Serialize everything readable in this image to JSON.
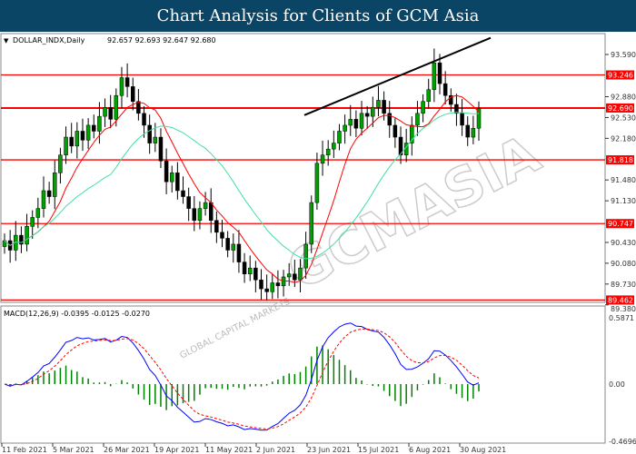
{
  "header": {
    "title": "Chart Analysis for Clients of GCM Asia"
  },
  "watermark": {
    "text": "GCMASIA",
    "subtext": "GLOBAL CAPITAL MARKETS"
  },
  "colors": {
    "header": "#0b4566",
    "level": "#ff0000",
    "ma_fast": "#ff0000",
    "ma_slow": "#40e0a0",
    "macd": "#0000ff",
    "signal": "#ff0000",
    "histogram": "#008000",
    "bull": "#00a000",
    "bear": "#000000"
  },
  "chart_data": [
    {
      "type": "candlestick",
      "symbol_label": "DOLLAR_INDX,Daily",
      "ohlc_label": "92.657 92.693 92.647 92.680",
      "y_ticks": [
        "93.590",
        "92.880",
        "92.530",
        "92.180",
        "91.480",
        "91.130",
        "90.430",
        "90.080",
        "89.730",
        "89.380"
      ],
      "ylim": [
        89.38,
        93.95
      ],
      "levels": [
        "93.246",
        "92.690",
        "91.818",
        "90.747",
        "89.462"
      ],
      "trendline": {
        "from": 92.57,
        "to": 93.87
      },
      "closes": [
        90.46,
        90.3,
        90.55,
        90.4,
        90.7,
        90.85,
        91.0,
        91.3,
        91.2,
        91.6,
        91.9,
        92.2,
        92.05,
        92.3,
        92.15,
        92.4,
        92.3,
        92.55,
        92.7,
        92.5,
        92.9,
        93.2,
        93.05,
        92.8,
        92.6,
        92.4,
        92.1,
        92.2,
        91.8,
        91.45,
        91.6,
        91.3,
        91.2,
        91.0,
        90.8,
        91.0,
        91.1,
        90.8,
        90.6,
        90.5,
        90.3,
        90.4,
        90.1,
        89.9,
        90.0,
        89.8,
        89.65,
        89.6,
        89.75,
        89.7,
        89.85,
        89.9,
        89.8,
        90.0,
        90.4,
        91.1,
        91.76,
        91.9,
        92.0,
        92.1,
        92.3,
        92.4,
        92.5,
        92.35,
        92.6,
        92.55,
        92.7,
        92.82,
        92.6,
        92.4,
        92.2,
        91.9,
        92.1,
        92.4,
        92.6,
        92.8,
        93.0,
        93.45,
        93.1,
        92.9,
        92.75,
        92.6,
        92.4,
        92.2,
        92.35,
        92.68
      ],
      "x_ticks": [
        "11 Feb 2021",
        "5 Mar 2021",
        "26 Mar 2021",
        "19 Apr 2021",
        "11 May 2021",
        "2 Jun 2021",
        "23 Jun 2021",
        "15 Jul 2021",
        "6 Aug 2021",
        "30 Aug 2021"
      ]
    },
    {
      "type": "macd",
      "label": "MACD(12,26,9) -0.0395 -0.0125 -0.0270",
      "y_ticks": [
        "0.5871",
        "0.00",
        "-0.4696"
      ],
      "ylim": [
        -0.4696,
        0.5871
      ]
    }
  ]
}
